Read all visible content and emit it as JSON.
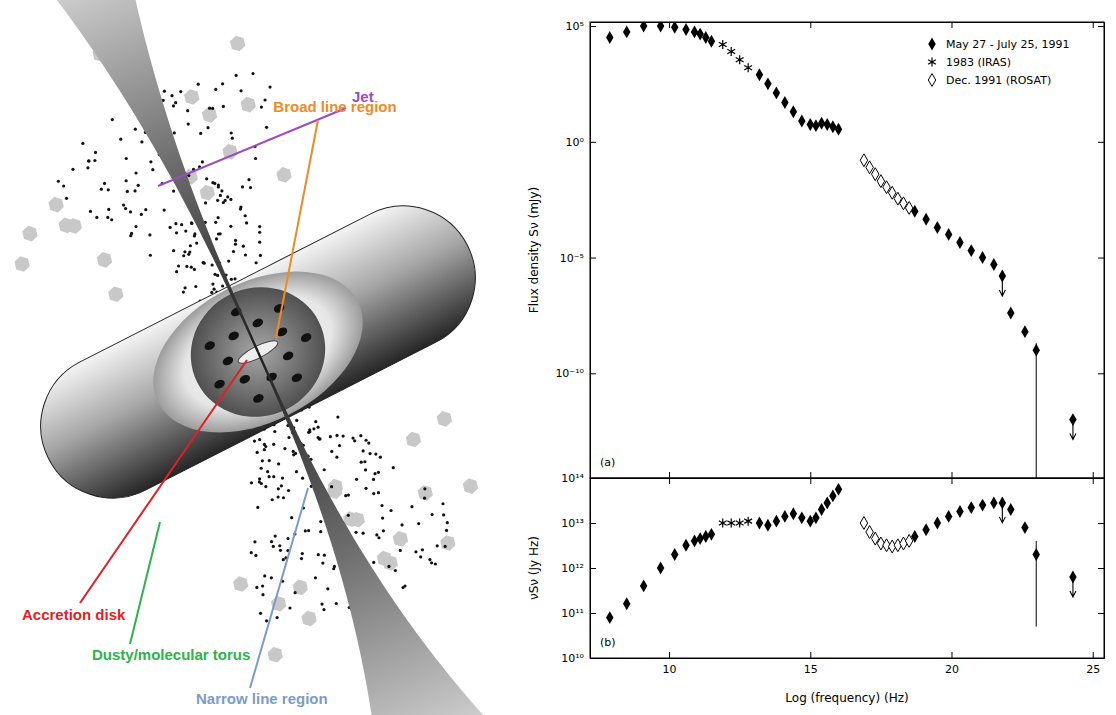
{
  "diagram": {
    "labels": [
      {
        "text": "Jet",
        "color": "#9b4dbf"
      },
      {
        "text": "Broad line region",
        "color": "#f08a24"
      },
      {
        "text": "Accretion disk",
        "color": "#e31e24"
      },
      {
        "text": "Dusty/molecular torus",
        "color": "#2db34a"
      },
      {
        "text": "Narrow line region",
        "color": "#7b9cc8"
      }
    ]
  },
  "chart_data": [
    {
      "type": "scatter",
      "panel_label": "(a)",
      "y_label": "Flux density Sν (mJy)",
      "log": "y",
      "xlim": [
        7.2,
        25.4
      ],
      "xticks": [
        10,
        15,
        20,
        25
      ],
      "ylim": [
        3e-15,
        150000
      ],
      "yticks": [
        {
          "value": 100000,
          "label": "10⁵"
        },
        {
          "value": 1,
          "label": "10⁰"
        },
        {
          "value": 1e-05,
          "label": "10⁻⁵"
        },
        {
          "value": 1e-10,
          "label": "10⁻¹⁰"
        }
      ],
      "tick_labels": "y",
      "legend": "upper right",
      "series": [
        {
          "name": "May 27 - July 25, 1991",
          "color": "#000000",
          "marker": "diamond",
          "x": [
            7.9,
            8.5,
            9.1,
            9.7,
            10.2,
            10.6,
            10.9,
            11.1,
            11.3,
            11.5,
            13.2,
            13.5,
            13.8,
            14.1,
            14.4,
            14.7,
            15.0,
            15.2,
            15.4,
            15.6,
            15.8,
            16.0,
            18.7,
            19.1,
            19.5,
            19.9,
            20.3,
            20.7,
            21.1,
            21.5,
            21.8,
            22.1,
            22.6,
            23.0,
            24.3
          ],
          "values": [
            32000,
            56000,
            100000,
            100000,
            89000,
            71000,
            56000,
            45000,
            32000,
            22000,
            790,
            320,
            130,
            50,
            20,
            7.9,
            5.6,
            5,
            6.3,
            5.6,
            4.5,
            3.5,
            0.001,
            0.00045,
            0.0002,
            0.0001,
            4.5e-05,
            2e-05,
            1e-05,
            5e-06,
            1.6e-06,
            4e-08,
            6.3e-09,
            1e-09,
            1e-12
          ],
          "upper_limit": [
            false,
            false,
            false,
            false,
            false,
            false,
            false,
            false,
            false,
            false,
            false,
            false,
            false,
            false,
            false,
            false,
            false,
            false,
            false,
            false,
            false,
            false,
            false,
            false,
            false,
            false,
            false,
            false,
            false,
            false,
            true,
            false,
            false,
            false,
            true
          ],
          "error_range": [
            null,
            null,
            null,
            null,
            null,
            null,
            null,
            null,
            null,
            null,
            null,
            null,
            null,
            null,
            null,
            null,
            null,
            null,
            null,
            null,
            null,
            null,
            null,
            null,
            null,
            null,
            null,
            null,
            null,
            null,
            null,
            null,
            null,
            [
              1e-15,
              2e-09
            ],
            null
          ]
        },
        {
          "name": "1983 (IRAS)",
          "color": "#000000",
          "marker": "asterisk",
          "x": [
            11.9,
            12.2,
            12.5,
            12.8
          ],
          "values": [
            16000,
            7900,
            3500,
            1600
          ]
        },
        {
          "name": "Dec. 1991 (ROSAT)",
          "color": "#000000",
          "marker": "diamond-open",
          "x": [
            16.9,
            17.1,
            17.3,
            17.5,
            17.7,
            17.9,
            18.1,
            18.3,
            18.5
          ],
          "values": [
            0.16,
            0.079,
            0.04,
            0.02,
            0.011,
            0.0063,
            0.0035,
            0.0022,
            0.0014
          ]
        }
      ]
    },
    {
      "type": "scatter",
      "panel_label": "(b)",
      "x_label": "Log (frequency) (Hz)",
      "y_label": "νSν (Jy Hz)",
      "log": "y",
      "xlim": [
        7.2,
        25.4
      ],
      "xticks": [
        10,
        15,
        20,
        25
      ],
      "ylim": [
        10000000000.0,
        100000000000000.0
      ],
      "yticks": [
        {
          "value": 100000000000000.0,
          "label": "10¹⁴"
        },
        {
          "value": 10000000000000.0,
          "label": "10¹³"
        },
        {
          "value": 1000000000000.0,
          "label": "10¹²"
        },
        {
          "value": 100000000000.0,
          "label": "10¹¹"
        },
        {
          "value": 10000000000.0,
          "label": "10¹⁰"
        }
      ],
      "series": [
        {
          "color": "#000000",
          "marker": "diamond",
          "x": [
            7.9,
            8.5,
            9.1,
            9.7,
            10.2,
            10.6,
            10.9,
            11.1,
            11.3,
            11.5,
            13.2,
            13.5,
            13.8,
            14.1,
            14.4,
            14.7,
            15.0,
            15.2,
            15.4,
            15.6,
            15.8,
            16.0,
            18.7,
            19.1,
            19.5,
            19.9,
            20.3,
            20.7,
            21.1,
            21.5,
            21.8,
            22.1,
            22.6,
            23.0,
            24.3
          ],
          "values": [
            79000000000,
            160000000000,
            400000000000,
            1000000000000,
            2000000000000,
            3200000000000,
            4000000000000,
            4500000000000,
            5000000000000,
            5600000000000,
            10000000000000,
            8900000000000,
            11000000000000,
            14000000000000,
            16000000000000,
            13000000000000,
            11000000000000,
            13000000000000,
            20000000000000,
            28000000000000,
            40000000000000,
            56000000000000,
            5000000000000,
            7100000000000,
            10000000000000,
            14000000000000,
            18000000000000,
            22000000000000,
            25000000000000,
            28000000000000,
            28000000000000,
            20000000000000,
            7900000000000,
            2000000000000,
            630000000000
          ],
          "upper_limit": [
            false,
            false,
            false,
            false,
            false,
            false,
            false,
            false,
            false,
            false,
            false,
            false,
            false,
            false,
            false,
            false,
            false,
            false,
            false,
            false,
            false,
            false,
            false,
            false,
            false,
            false,
            false,
            false,
            false,
            false,
            true,
            false,
            false,
            false,
            true
          ],
          "error_range": [
            null,
            null,
            null,
            null,
            null,
            null,
            null,
            null,
            null,
            null,
            null,
            null,
            null,
            null,
            null,
            null,
            null,
            null,
            null,
            null,
            null,
            null,
            null,
            null,
            null,
            null,
            null,
            null,
            null,
            null,
            null,
            null,
            null,
            [
              50000000000,
              4000000000000
            ],
            null
          ]
        },
        {
          "color": "#000000",
          "marker": "asterisk",
          "x": [
            11.9,
            12.2,
            12.5,
            12.8
          ],
          "values": [
            10000000000000,
            10000000000000,
            10000000000000,
            11000000000000
          ]
        },
        {
          "color": "#000000",
          "marker": "diamond-open",
          "x": [
            16.9,
            17.1,
            17.3,
            17.5,
            17.7,
            17.9,
            18.1,
            18.3,
            18.5
          ],
          "values": [
            10000000000000,
            6300000000000,
            4500000000000,
            3500000000000,
            3200000000000,
            3000000000000,
            3200000000000,
            3500000000000,
            4000000000000
          ]
        }
      ]
    }
  ]
}
